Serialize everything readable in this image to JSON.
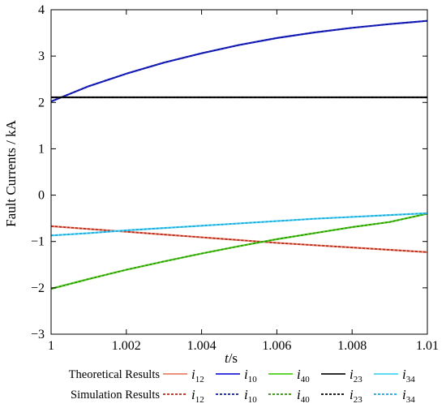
{
  "chart_data": {
    "type": "line",
    "xlabel_italic": "t",
    "xlabel_unit": "/s",
    "ylabel": "Fault Currents / kA",
    "xlim": [
      1,
      1.01
    ],
    "ylim": [
      -3,
      4
    ],
    "xticks": [
      "1",
      "1.002",
      "1.004",
      "1.006",
      "1.008",
      "1.01"
    ],
    "yticks": [
      "4",
      "3",
      "2",
      "1",
      "0",
      "−1",
      "−2",
      "−3"
    ],
    "x": [
      1.0,
      1.001,
      1.002,
      1.003,
      1.004,
      1.005,
      1.006,
      1.007,
      1.008,
      1.009,
      1.01
    ],
    "series": [
      {
        "symbol": "i",
        "sub": "12",
        "color": "#e8826a",
        "simcolor": "#b02418",
        "values": [
          -0.67,
          -0.73,
          -0.79,
          -0.85,
          -0.91,
          -0.97,
          -1.03,
          -1.08,
          -1.13,
          -1.18,
          -1.23
        ]
      },
      {
        "symbol": "i",
        "sub": "10",
        "color": "#2020d8",
        "simcolor": "#0a1a8c",
        "values": [
          2.02,
          2.35,
          2.62,
          2.86,
          3.06,
          3.24,
          3.39,
          3.51,
          3.61,
          3.69,
          3.76
        ]
      },
      {
        "symbol": "i",
        "sub": "40",
        "color": "#4ccf1a",
        "simcolor": "#2f8f06",
        "values": [
          -2.02,
          -1.81,
          -1.61,
          -1.43,
          -1.26,
          -1.1,
          -0.95,
          -0.82,
          -0.69,
          -0.58,
          -0.4
        ]
      },
      {
        "symbol": "i",
        "sub": "23",
        "color": "#111111",
        "simcolor": "#000000",
        "values": [
          2.11,
          2.11,
          2.11,
          2.11,
          2.11,
          2.11,
          2.11,
          2.11,
          2.11,
          2.11,
          2.11
        ]
      },
      {
        "symbol": "i",
        "sub": "34",
        "color": "#4ad6f2",
        "simcolor": "#1fa0d8",
        "values": [
          -0.87,
          -0.82,
          -0.76,
          -0.71,
          -0.66,
          -0.61,
          -0.56,
          -0.51,
          -0.47,
          -0.43,
          -0.39
        ]
      }
    ],
    "legend": {
      "theoretical_label": "Theoretical Results",
      "simulation_label": "Simulation Results"
    }
  }
}
